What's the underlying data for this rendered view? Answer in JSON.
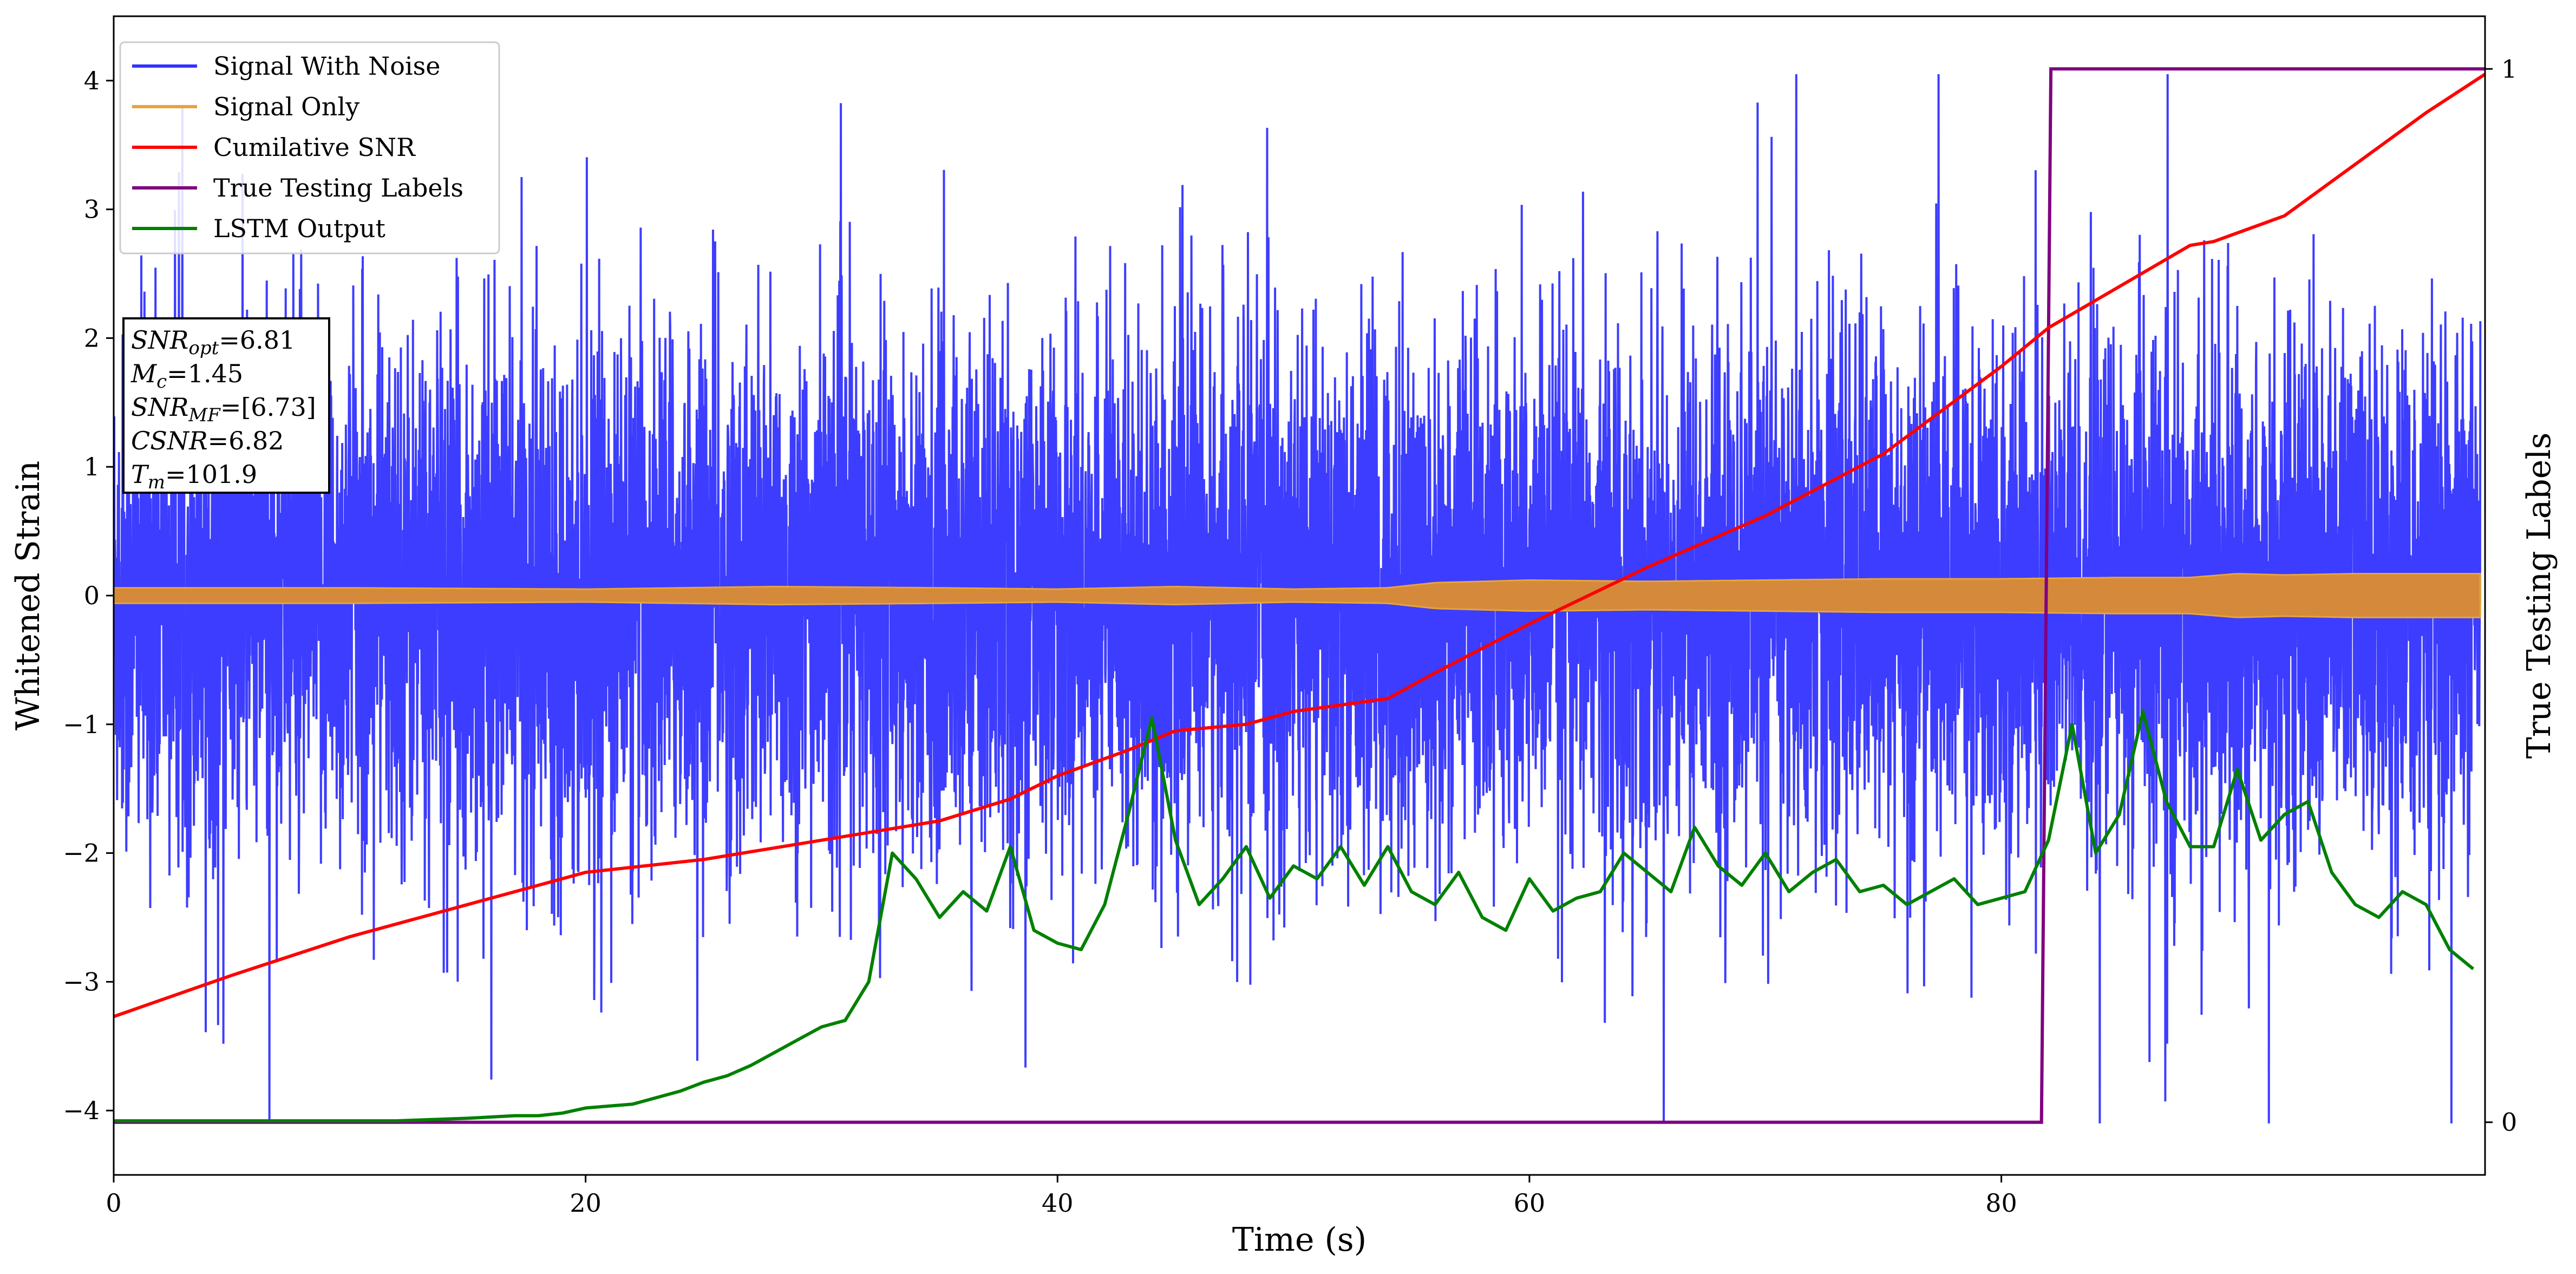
{
  "chart_data": {
    "type": "line",
    "xlabel": "Time (s)",
    "ylabel": "Whitened Strain",
    "y2label": "True Testing Labels",
    "xlim": [
      0,
      100.5
    ],
    "ylim": [
      -4.5,
      4.5
    ],
    "y2lim": [
      -0.05,
      1.05
    ],
    "xticks": [
      0,
      20,
      40,
      60,
      80
    ],
    "yticks": [
      -4,
      -3,
      -2,
      -1,
      0,
      1,
      2,
      3,
      4
    ],
    "y2ticks": [
      0,
      1
    ],
    "legend_position": "top-left",
    "series": [
      {
        "name": "Signal With Noise",
        "color": "#3333ff",
        "axis": "left",
        "kind": "noise",
        "spread": 1.0,
        "min": -4.1,
        "max": 4.05
      },
      {
        "name": "Signal Only",
        "color": "#e8a33a",
        "axis": "left",
        "kind": "band",
        "x": [
          0,
          10,
          20,
          28,
          35,
          40,
          45,
          50,
          54,
          56,
          60,
          65,
          70,
          75,
          80,
          85,
          88,
          90,
          92,
          95,
          100
        ],
        "amp": [
          0.06,
          0.06,
          0.05,
          0.07,
          0.06,
          0.05,
          0.07,
          0.05,
          0.06,
          0.1,
          0.12,
          0.11,
          0.12,
          0.13,
          0.13,
          0.14,
          0.14,
          0.17,
          0.16,
          0.17,
          0.17
        ]
      },
      {
        "name": "Cumilative SNR",
        "color": "#ff0000",
        "axis": "left",
        "x": [
          0,
          5,
          10,
          15,
          20,
          25,
          30,
          35,
          38,
          40,
          43,
          45,
          48,
          50,
          52,
          54,
          56,
          60,
          65,
          70,
          75,
          80,
          82,
          85,
          88,
          89,
          92,
          95,
          98,
          100.5
        ],
        "y": [
          -3.27,
          -2.95,
          -2.65,
          -2.4,
          -2.15,
          -2.05,
          -1.9,
          -1.75,
          -1.58,
          -1.4,
          -1.2,
          -1.05,
          -1.0,
          -0.9,
          -0.85,
          -0.8,
          -0.6,
          -0.22,
          0.22,
          0.62,
          1.1,
          1.78,
          2.08,
          2.4,
          2.72,
          2.75,
          2.95,
          3.35,
          3.75,
          4.05
        ]
      },
      {
        "name": "True Testing Labels",
        "color": "#800080",
        "axis": "right",
        "x": [
          0,
          81.7,
          82.1,
          100.5
        ],
        "y": [
          0,
          0,
          1,
          1
        ]
      },
      {
        "name": "LSTM Output",
        "color": "#008000",
        "axis": "left",
        "x": [
          0,
          12,
          15,
          17,
          18,
          19,
          20,
          22,
          24,
          25,
          26,
          27,
          28,
          29,
          30,
          31,
          32,
          33,
          34,
          35,
          36,
          37,
          38,
          39,
          40,
          41,
          42,
          43,
          44,
          45,
          46,
          47,
          48,
          49,
          50,
          51,
          52,
          53,
          54,
          55,
          56,
          57,
          58,
          59,
          60,
          61,
          62,
          63,
          64,
          65,
          66,
          67,
          68,
          69,
          70,
          71,
          72,
          73,
          74,
          75,
          76,
          77,
          78,
          79,
          80,
          81,
          82,
          83,
          84,
          85,
          86,
          87,
          88,
          89,
          90,
          91,
          92,
          93,
          94,
          95,
          96,
          97,
          98,
          99,
          100
        ],
        "y": [
          -4.08,
          -4.08,
          -4.06,
          -4.04,
          -4.04,
          -4.02,
          -3.98,
          -3.95,
          -3.85,
          -3.78,
          -3.73,
          -3.65,
          -3.55,
          -3.45,
          -3.35,
          -3.3,
          -3.0,
          -2.0,
          -2.2,
          -2.5,
          -2.3,
          -2.45,
          -1.95,
          -2.6,
          -2.7,
          -2.75,
          -2.4,
          -1.7,
          -0.95,
          -1.9,
          -2.4,
          -2.2,
          -1.95,
          -2.35,
          -2.1,
          -2.2,
          -1.95,
          -2.25,
          -1.95,
          -2.3,
          -2.4,
          -2.15,
          -2.5,
          -2.6,
          -2.2,
          -2.45,
          -2.35,
          -2.3,
          -2.0,
          -2.15,
          -2.3,
          -1.8,
          -2.1,
          -2.25,
          -2.0,
          -2.3,
          -2.15,
          -2.05,
          -2.3,
          -2.25,
          -2.4,
          -2.3,
          -2.2,
          -2.4,
          -2.35,
          -2.3,
          -1.9,
          -1.0,
          -2.0,
          -1.7,
          -0.9,
          -1.6,
          -1.95,
          -1.95,
          -1.35,
          -1.9,
          -1.7,
          -1.6,
          -2.15,
          -2.4,
          -2.5,
          -2.3,
          -2.4,
          -2.75,
          -2.9
        ]
      }
    ],
    "annotations": [
      {
        "base": "SNR",
        "sub": "opt",
        "value": "=6.81"
      },
      {
        "base": "M",
        "sub": "c",
        "value": "=1.45"
      },
      {
        "base": "SNR",
        "sub": "MF",
        "value": "=[6.73]"
      },
      {
        "base": "CSNR",
        "sub": "",
        "value": "=6.82"
      },
      {
        "base": "T",
        "sub": "m",
        "value": "=101.9"
      }
    ]
  }
}
